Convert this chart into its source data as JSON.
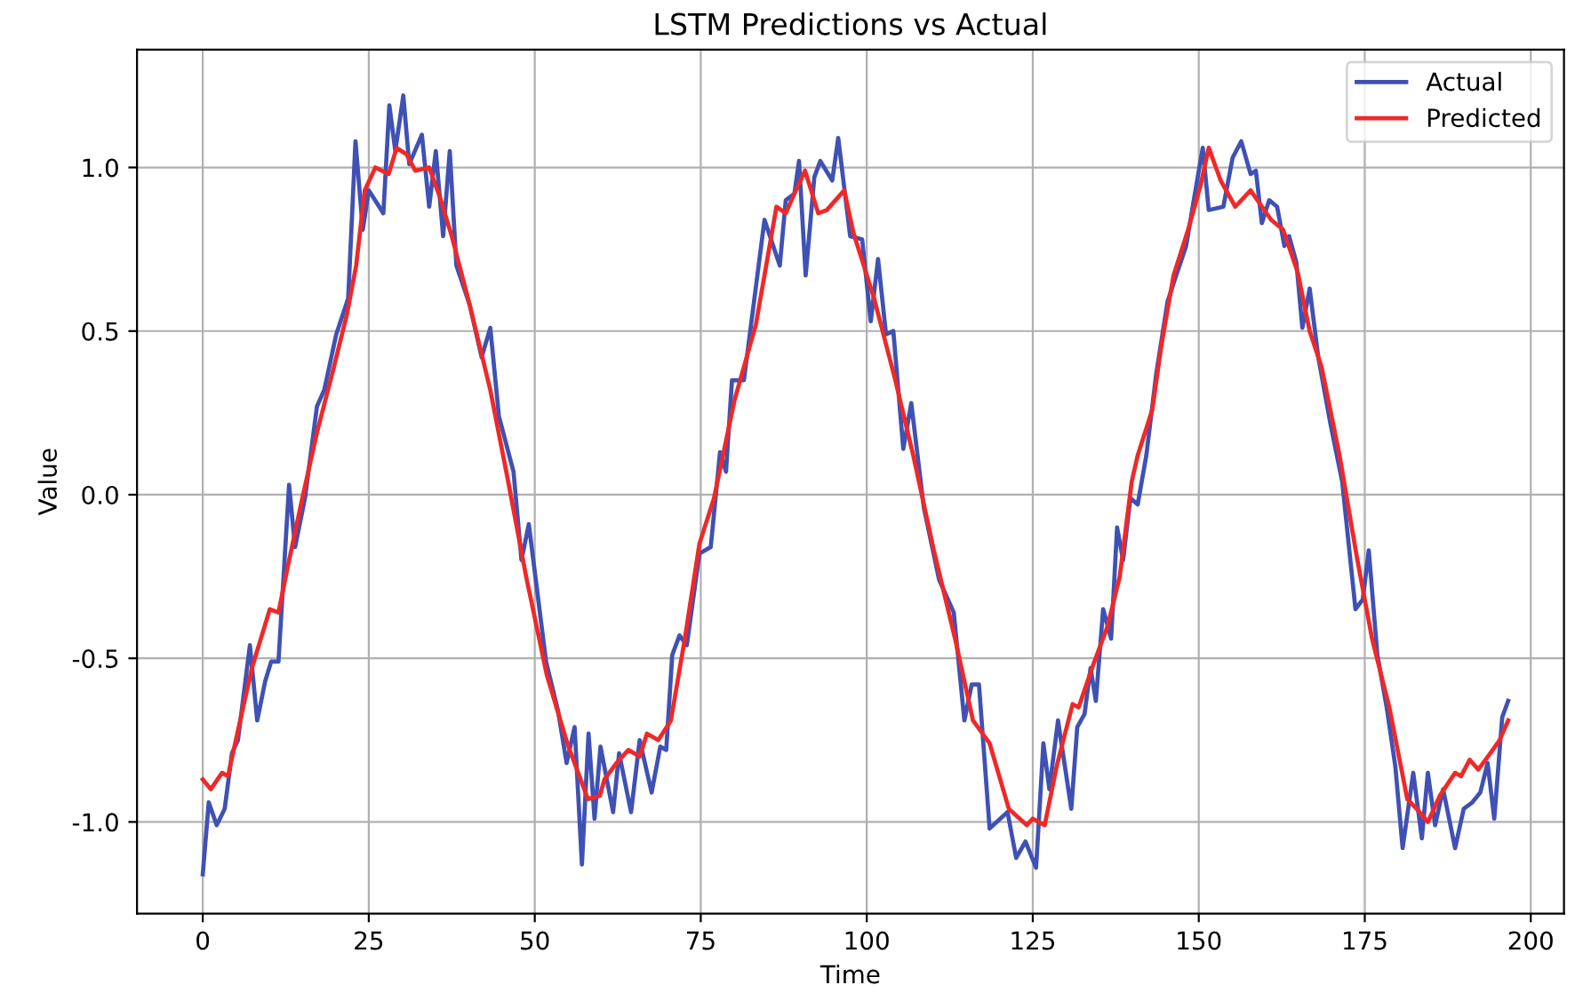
{
  "chart_data": {
    "type": "line",
    "title": "LSTM Predictions vs Actual",
    "xlabel": "Time",
    "ylabel": "Value",
    "xlim": [
      -9.9,
      205
    ],
    "ylim": [
      -1.28,
      1.36
    ],
    "xticks": [
      0,
      25,
      50,
      75,
      100,
      125,
      150,
      175,
      200
    ],
    "yticks": [
      {
        "value": -1.0,
        "label": "-1.0"
      },
      {
        "value": -0.5,
        "label": "-0.5"
      },
      {
        "value": 0.0,
        "label": "0.0"
      },
      {
        "value": 0.5,
        "label": "0.5"
      },
      {
        "value": 1.0,
        "label": "1.0"
      }
    ],
    "grid": true,
    "legend": "top right",
    "line_style": "solid",
    "series": [
      {
        "name": "Actual",
        "color": "#3f51b5",
        "x": [
          0,
          0.9,
          2.1,
          3.3,
          4.4,
          5.3,
          7.1,
          8.2,
          9.4,
          10.3,
          11.4,
          13.0,
          13.9,
          15.4,
          17.2,
          18.3,
          20.1,
          21.9,
          23.0,
          24.1,
          25.0,
          27.2,
          28.1,
          29.0,
          30.2,
          31.1,
          33.0,
          34.1,
          35.1,
          36.2,
          37.2,
          38.2,
          40.2,
          42.0,
          43.3,
          44.6,
          46.8,
          48.0,
          49.1,
          51.7,
          53.5,
          54.8,
          56.0,
          57.1,
          58.1,
          59.0,
          59.9,
          61.8,
          62.7,
          64.5,
          65.8,
          67.6,
          68.9,
          69.8,
          70.7,
          71.8,
          72.9,
          74.8,
          76.5,
          77.9,
          78.8,
          79.7,
          81.5,
          84.6,
          86.9,
          87.8,
          89.1,
          89.8,
          90.8,
          92.1,
          93.0,
          94.8,
          95.7,
          97.5,
          99.3,
          100.6,
          101.7,
          102.9,
          104.0,
          105.5,
          106.7,
          108.6,
          110.9,
          113.1,
          114.7,
          115.8,
          116.9,
          118.5,
          121.2,
          122.5,
          123.9,
          125.5,
          126.6,
          127.5,
          128.8,
          130.8,
          131.7,
          132.8,
          133.7,
          134.5,
          135.6,
          136.8,
          137.7,
          138.6,
          139.7,
          140.8,
          142.1,
          143.6,
          145.3,
          146.6,
          148.1,
          149.5,
          150.6,
          151.5,
          153.7,
          155.1,
          156.4,
          157.8,
          158.6,
          159.5,
          160.6,
          161.8,
          162.9,
          163.6,
          164.7,
          165.6,
          166.7,
          168.0,
          169.8,
          171.6,
          173.6,
          174.7,
          175.6,
          176.9,
          178.3,
          179.6,
          180.7,
          182.3,
          183.6,
          184.5,
          185.6,
          186.8,
          188.6,
          189.9,
          191.2,
          192.4,
          193.5,
          194.5,
          195.7,
          196.6
        ],
        "values": [
          -1.16,
          -0.94,
          -1.01,
          -0.96,
          -0.79,
          -0.75,
          -0.46,
          -0.69,
          -0.57,
          -0.51,
          -0.51,
          0.03,
          -0.16,
          -0.01,
          0.27,
          0.32,
          0.49,
          0.6,
          1.08,
          0.81,
          0.93,
          0.86,
          1.19,
          1.05,
          1.22,
          1.01,
          1.1,
          0.88,
          1.05,
          0.79,
          1.05,
          0.7,
          0.58,
          0.42,
          0.51,
          0.24,
          0.07,
          -0.2,
          -0.09,
          -0.51,
          -0.66,
          -0.82,
          -0.71,
          -1.13,
          -0.73,
          -0.99,
          -0.77,
          -0.97,
          -0.79,
          -0.97,
          -0.75,
          -0.91,
          -0.77,
          -0.78,
          -0.49,
          -0.43,
          -0.46,
          -0.18,
          -0.16,
          0.13,
          0.07,
          0.35,
          0.35,
          0.84,
          0.7,
          0.9,
          0.92,
          1.02,
          0.67,
          0.97,
          1.02,
          0.96,
          1.09,
          0.79,
          0.78,
          0.53,
          0.72,
          0.49,
          0.5,
          0.14,
          0.28,
          -0.04,
          -0.26,
          -0.36,
          -0.69,
          -0.58,
          -0.58,
          -1.02,
          -0.97,
          -1.11,
          -1.06,
          -1.14,
          -0.76,
          -0.9,
          -0.69,
          -0.96,
          -0.71,
          -0.67,
          -0.53,
          -0.63,
          -0.35,
          -0.44,
          -0.1,
          -0.2,
          -0.01,
          -0.03,
          0.12,
          0.37,
          0.59,
          0.67,
          0.76,
          0.93,
          1.06,
          0.87,
          0.88,
          1.03,
          1.08,
          0.98,
          0.99,
          0.83,
          0.9,
          0.88,
          0.76,
          0.79,
          0.71,
          0.51,
          0.63,
          0.42,
          0.22,
          0.04,
          -0.35,
          -0.32,
          -0.17,
          -0.49,
          -0.65,
          -0.83,
          -1.08,
          -0.85,
          -1.05,
          -0.85,
          -1.01,
          -0.9,
          -1.08,
          -0.96,
          -0.94,
          -0.91,
          -0.82,
          -0.99,
          -0.68,
          -0.63
        ]
      },
      {
        "name": "Predicted",
        "color": "#f02828",
        "x": [
          0,
          1.2,
          2.9,
          3.8,
          5.2,
          7.4,
          10.1,
          11.4,
          12.8,
          15.0,
          17.2,
          19.5,
          21.7,
          23.1,
          24.4,
          26.0,
          28.0,
          29.2,
          30.7,
          32.0,
          34.1,
          35.7,
          37.5,
          40.2,
          43.3,
          46.0,
          48.7,
          51.8,
          54.9,
          58.0,
          59.8,
          60.5,
          62.3,
          64.1,
          65.8,
          66.9,
          68.6,
          70.5,
          72.6,
          74.8,
          77.0,
          80.1,
          83.3,
          86.4,
          87.8,
          89.1,
          90.7,
          92.7,
          94.0,
          96.6,
          98.0,
          101.1,
          104.3,
          107.0,
          110.1,
          113.3,
          116.0,
          118.5,
          121.4,
          124.1,
          125.0,
          126.8,
          128.6,
          131.0,
          131.9,
          134.1,
          136.3,
          138.1,
          139.9,
          140.8,
          143.0,
          144.4,
          146.2,
          148.4,
          150.2,
          151.5,
          153.3,
          155.5,
          157.8,
          160.9,
          162.7,
          164.9,
          166.7,
          168.5,
          171.2,
          173.8,
          176.1,
          178.7,
          181.4,
          182.8,
          184.5,
          186.3,
          188.6,
          189.5,
          190.8,
          192.1,
          193.9,
          195.3,
          196.6
        ],
        "values": [
          -0.87,
          -0.9,
          -0.85,
          -0.86,
          -0.73,
          -0.53,
          -0.35,
          -0.36,
          -0.22,
          -0.01,
          0.19,
          0.37,
          0.55,
          0.7,
          0.93,
          1.0,
          0.98,
          1.06,
          1.04,
          0.99,
          1.0,
          0.91,
          0.79,
          0.58,
          0.32,
          0.04,
          -0.25,
          -0.55,
          -0.76,
          -0.93,
          -0.92,
          -0.87,
          -0.82,
          -0.78,
          -0.8,
          -0.73,
          -0.75,
          -0.69,
          -0.44,
          -0.15,
          -0.01,
          0.29,
          0.52,
          0.88,
          0.86,
          0.92,
          0.99,
          0.86,
          0.87,
          0.93,
          0.8,
          0.6,
          0.35,
          0.12,
          -0.17,
          -0.44,
          -0.69,
          -0.76,
          -0.96,
          -1.01,
          -0.99,
          -1.01,
          -0.83,
          -0.64,
          -0.65,
          -0.52,
          -0.4,
          -0.25,
          0.04,
          0.12,
          0.26,
          0.46,
          0.67,
          0.81,
          0.94,
          1.06,
          0.96,
          0.88,
          0.93,
          0.84,
          0.81,
          0.68,
          0.5,
          0.39,
          0.12,
          -0.19,
          -0.44,
          -0.65,
          -0.93,
          -0.96,
          -1.0,
          -0.92,
          -0.85,
          -0.86,
          -0.81,
          -0.84,
          -0.79,
          -0.75,
          -0.69
        ]
      }
    ]
  }
}
